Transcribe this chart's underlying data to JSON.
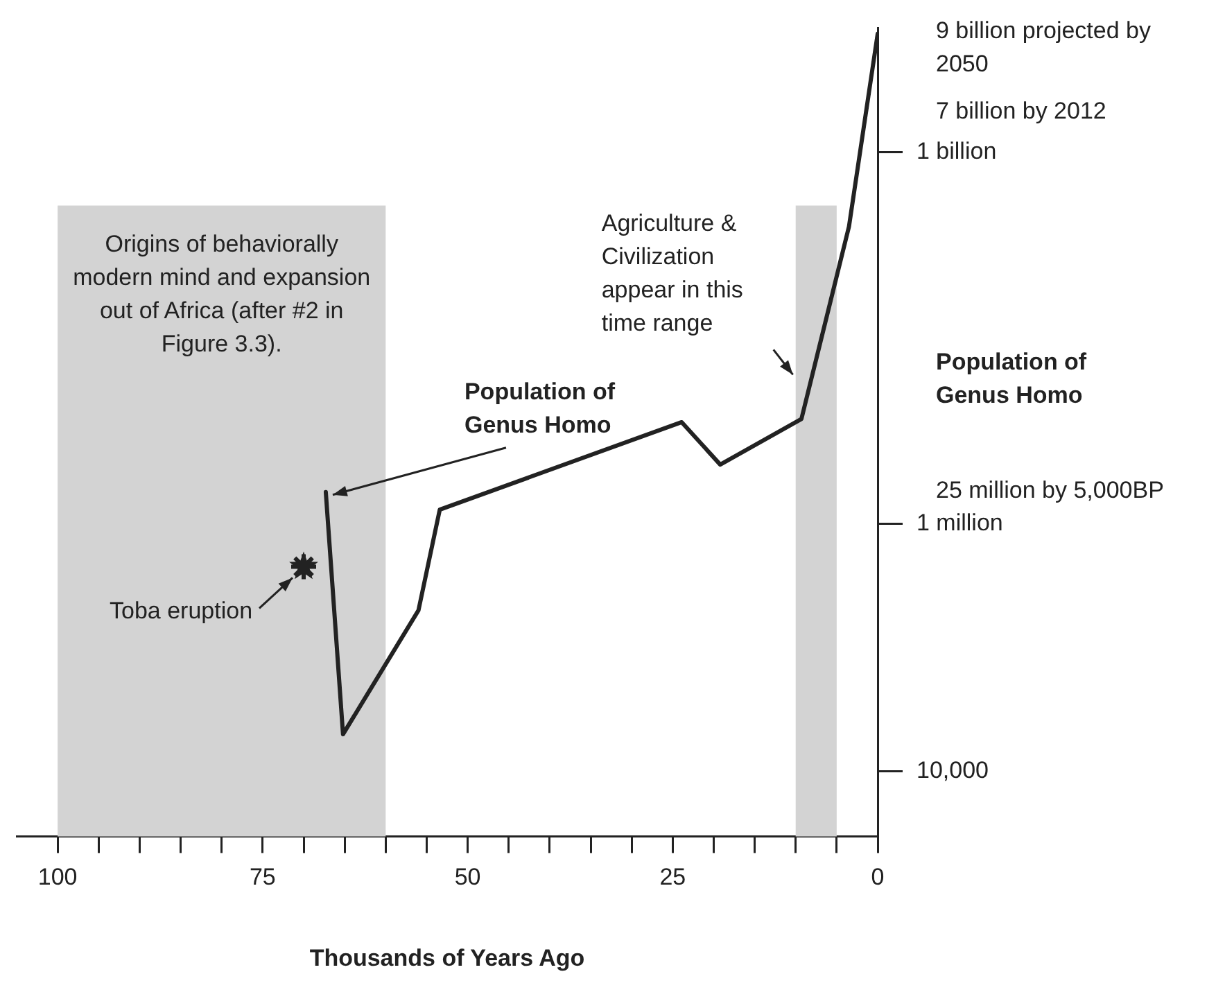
{
  "chart_data": {
    "type": "line",
    "xlabel": "Thousands of Years Ago",
    "ylabel": "Population of Genus Homo",
    "x": [
      67.3,
      65.2,
      56,
      53.4,
      23.9,
      19.2,
      9.3,
      3.5,
      0
    ],
    "series": [
      {
        "color": "#222222",
        "values": [
          1800000,
          20000,
          200000,
          1300000,
          6600000,
          3000000,
          7000000,
          250000000,
          9000000000
        ]
      },
      {
        "type": "scatter",
        "x": [
          70
        ],
        "values": [
          450000
        ],
        "color": "#222222",
        "marker": "star"
      }
    ],
    "xlim": [
      105,
      0
    ],
    "xticks": [
      100,
      {
        "value": 95,
        "label": null
      },
      {
        "value": 90,
        "label": null
      },
      {
        "value": 85,
        "label": null
      },
      {
        "value": 80,
        "label": null
      },
      75,
      {
        "value": 70,
        "label": null
      },
      {
        "value": 65,
        "label": null
      },
      {
        "value": 60,
        "label": null
      },
      {
        "value": 55,
        "label": null
      },
      50,
      {
        "value": 45,
        "label": null
      },
      {
        "value": 40,
        "label": null
      },
      {
        "value": 35,
        "label": null
      },
      {
        "value": 30,
        "label": null
      },
      25,
      {
        "value": 20,
        "label": null
      },
      {
        "value": 15,
        "label": null
      },
      {
        "value": 10,
        "label": null
      },
      {
        "value": 5,
        "label": null
      },
      0
    ],
    "ylim": [
      3000,
      10000000000
    ],
    "yticks": [
      {
        "value": 10000,
        "label": "10,000"
      },
      {
        "value": 1000000,
        "label": "1 million"
      },
      {
        "value": 1000000000,
        "label": "1 billion"
      }
    ],
    "log": "y",
    "grid": false,
    "legend": false,
    "marker": "none",
    "line_style": "solid",
    "bands": [
      {
        "axis": "x",
        "from": 100,
        "to": 60,
        "color": "#d3d3d3",
        "label": "Origins of behaviorally modern mind and expansion out of Africa (after #2 in Figure 3.3)."
      },
      {
        "axis": "x",
        "from": 10,
        "to": 5,
        "color": "#d3d3d3",
        "label": "Agriculture & Civilization appear in this time range"
      }
    ],
    "annotations": [
      {
        "text": "Population of Genus Homo",
        "x": 67.3,
        "y": 1800000
      },
      {
        "text": "Toba eruption",
        "x": 70,
        "y": 450000
      },
      {
        "text": "9 billion projected by 2050",
        "x": 0,
        "y": 9000000000
      },
      "7 billion by 2012",
      "25 million by 5,000BP"
    ]
  }
}
